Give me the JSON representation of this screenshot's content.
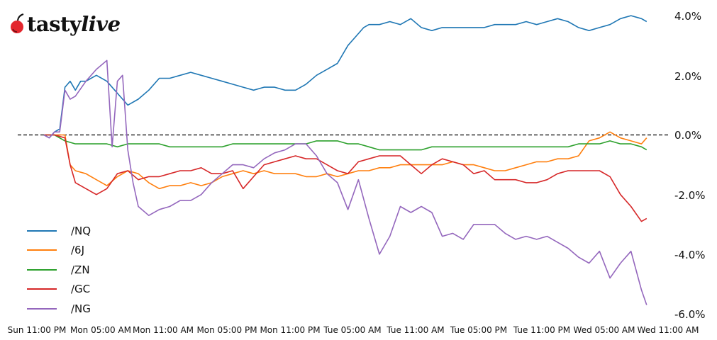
{
  "brand": {
    "name_part1": "tasty",
    "name_part2": "live",
    "cherry_color": "#e3262d"
  },
  "chart_data": {
    "type": "line",
    "title": "",
    "xlabel": "",
    "ylabel": "",
    "ylim": [
      -6.0,
      4.0
    ],
    "y_ticks": [
      "4.0%",
      "2.0%",
      "0.0%",
      "-2.0%",
      "-4.0%",
      "-6.0%"
    ],
    "y_tick_values": [
      4.0,
      2.0,
      0.0,
      -2.0,
      -4.0,
      -6.0
    ],
    "y_axis_position": "right",
    "x_ticks": [
      "Sun 11:00 PM",
      "Mon 05:00 AM",
      "Mon 11:00 AM",
      "Mon 05:00 PM",
      "Mon 11:00 PM",
      "Tue 05:00 AM",
      "Tue 11:00 AM",
      "Tue 05:00 PM",
      "Tue 11:00 PM",
      "Wed 05:00 AM",
      "Wed 11:00 AM"
    ],
    "x_hours_from_start_note": "x values are hours since Sun 11:00 PM (tick every 6h)",
    "reference_line": {
      "y": 0.0,
      "style": "dashed",
      "color": "#000000"
    },
    "grid": false,
    "legend_position": "lower left",
    "series": [
      {
        "name": "/NQ",
        "color": "#1f77b4",
        "x": [
          0,
          0.5,
          1,
          1.5,
          2,
          2.5,
          3,
          3.5,
          4,
          5,
          6,
          7,
          8,
          9,
          10,
          11,
          12,
          13,
          14,
          15,
          16,
          17,
          18,
          19,
          20,
          21,
          22,
          23,
          24,
          25,
          26,
          27,
          28,
          29,
          30,
          30.5,
          31,
          32,
          33,
          34,
          35,
          36,
          37,
          38,
          39,
          40,
          41,
          42,
          43,
          44,
          45,
          46,
          47,
          48,
          49,
          50,
          51,
          52,
          53,
          54,
          55,
          56,
          57,
          57.5
        ],
        "values": [
          0,
          -0.1,
          0.1,
          0.2,
          1.6,
          1.8,
          1.5,
          1.8,
          1.8,
          2.0,
          1.8,
          1.4,
          1.0,
          1.2,
          1.5,
          1.9,
          1.9,
          2.0,
          2.1,
          2.0,
          1.9,
          1.8,
          1.7,
          1.6,
          1.5,
          1.6,
          1.6,
          1.5,
          1.5,
          1.7,
          2.0,
          2.2,
          2.4,
          3.0,
          3.4,
          3.6,
          3.7,
          3.7,
          3.8,
          3.7,
          3.9,
          3.6,
          3.5,
          3.6,
          3.6,
          3.6,
          3.6,
          3.6,
          3.7,
          3.7,
          3.7,
          3.8,
          3.7,
          3.8,
          3.9,
          3.8,
          3.6,
          3.5,
          3.6,
          3.7,
          3.9,
          4.0,
          3.9,
          3.8
        ]
      },
      {
        "name": "/6J",
        "color": "#ff7f0e",
        "x": [
          0,
          1,
          2,
          2.5,
          3,
          4,
          5,
          6,
          7,
          8,
          9,
          10,
          11,
          12,
          13,
          14,
          15,
          16,
          17,
          18,
          19,
          20,
          21,
          22,
          23,
          24,
          25,
          26,
          27,
          28,
          29,
          30,
          31,
          32,
          33,
          34,
          35,
          36,
          37,
          38,
          39,
          40,
          41,
          42,
          43,
          44,
          45,
          46,
          47,
          48,
          49,
          50,
          51,
          52,
          53,
          54,
          55,
          56,
          57,
          57.5
        ],
        "values": [
          0,
          0,
          0,
          -1.0,
          -1.2,
          -1.3,
          -1.5,
          -1.7,
          -1.4,
          -1.2,
          -1.3,
          -1.6,
          -1.8,
          -1.7,
          -1.7,
          -1.6,
          -1.7,
          -1.6,
          -1.4,
          -1.3,
          -1.2,
          -1.3,
          -1.2,
          -1.3,
          -1.3,
          -1.3,
          -1.4,
          -1.4,
          -1.3,
          -1.4,
          -1.3,
          -1.2,
          -1.2,
          -1.1,
          -1.1,
          -1.0,
          -1.0,
          -1.0,
          -1.0,
          -1.0,
          -0.9,
          -1.0,
          -1.0,
          -1.1,
          -1.2,
          -1.2,
          -1.1,
          -1.0,
          -0.9,
          -0.9,
          -0.8,
          -0.8,
          -0.7,
          -0.2,
          -0.1,
          0.1,
          -0.1,
          -0.2,
          -0.3,
          -0.1
        ]
      },
      {
        "name": "/ZN",
        "color": "#2ca02c",
        "x": [
          0,
          1,
          2,
          3,
          4,
          5,
          6,
          7,
          8,
          9,
          10,
          11,
          12,
          13,
          14,
          15,
          16,
          17,
          18,
          19,
          20,
          21,
          22,
          23,
          24,
          25,
          26,
          27,
          28,
          29,
          30,
          31,
          32,
          33,
          34,
          35,
          36,
          37,
          38,
          39,
          40,
          41,
          42,
          43,
          44,
          45,
          46,
          47,
          48,
          49,
          50,
          51,
          52,
          53,
          54,
          55,
          56,
          57,
          57.5
        ],
        "values": [
          0,
          0,
          -0.2,
          -0.3,
          -0.3,
          -0.3,
          -0.3,
          -0.4,
          -0.3,
          -0.3,
          -0.3,
          -0.3,
          -0.4,
          -0.4,
          -0.4,
          -0.4,
          -0.4,
          -0.4,
          -0.3,
          -0.3,
          -0.3,
          -0.3,
          -0.3,
          -0.3,
          -0.3,
          -0.3,
          -0.2,
          -0.2,
          -0.2,
          -0.3,
          -0.3,
          -0.4,
          -0.5,
          -0.5,
          -0.5,
          -0.5,
          -0.5,
          -0.4,
          -0.4,
          -0.4,
          -0.4,
          -0.4,
          -0.4,
          -0.4,
          -0.4,
          -0.4,
          -0.4,
          -0.4,
          -0.4,
          -0.4,
          -0.4,
          -0.3,
          -0.3,
          -0.3,
          -0.2,
          -0.3,
          -0.3,
          -0.4,
          -0.5
        ]
      },
      {
        "name": "/GC",
        "color": "#d62728",
        "x": [
          0,
          1,
          2,
          2.5,
          3,
          4,
          5,
          6,
          7,
          8,
          9,
          10,
          11,
          12,
          13,
          14,
          15,
          16,
          17,
          18,
          19,
          20,
          21,
          22,
          23,
          24,
          25,
          26,
          27,
          28,
          29,
          30,
          31,
          32,
          33,
          34,
          35,
          36,
          37,
          38,
          39,
          40,
          41,
          42,
          43,
          44,
          45,
          46,
          47,
          48,
          49,
          50,
          51,
          52,
          53,
          54,
          55,
          56,
          57,
          57.5
        ],
        "values": [
          0,
          0,
          -0.1,
          -1.0,
          -1.6,
          -1.8,
          -2.0,
          -1.8,
          -1.3,
          -1.2,
          -1.5,
          -1.4,
          -1.4,
          -1.3,
          -1.2,
          -1.2,
          -1.1,
          -1.3,
          -1.3,
          -1.2,
          -1.8,
          -1.4,
          -1.0,
          -0.9,
          -0.8,
          -0.7,
          -0.8,
          -0.8,
          -1.0,
          -1.2,
          -1.3,
          -0.9,
          -0.8,
          -0.7,
          -0.7,
          -0.7,
          -1.0,
          -1.3,
          -1.0,
          -0.8,
          -0.9,
          -1.0,
          -1.3,
          -1.2,
          -1.5,
          -1.5,
          -1.5,
          -1.6,
          -1.6,
          -1.5,
          -1.3,
          -1.2,
          -1.2,
          -1.2,
          -1.2,
          -1.4,
          -2.0,
          -2.4,
          -2.9,
          -2.8
        ]
      },
      {
        "name": "/NG",
        "color": "#9467bd",
        "x": [
          0,
          0.5,
          1,
          1.5,
          2,
          2.5,
          3,
          4,
          5,
          6,
          6.5,
          7,
          7.5,
          8,
          8.5,
          9,
          10,
          11,
          12,
          13,
          14,
          15,
          16,
          17,
          18,
          19,
          20,
          21,
          22,
          23,
          24,
          25,
          26,
          27,
          28,
          29,
          30,
          31,
          32,
          33,
          34,
          35,
          36,
          37,
          38,
          39,
          40,
          41,
          42,
          43,
          44,
          45,
          46,
          47,
          48,
          49,
          50,
          51,
          52,
          53,
          54,
          55,
          56,
          57,
          57.5
        ],
        "values": [
          0,
          -0.1,
          0.1,
          0.1,
          1.5,
          1.2,
          1.3,
          1.8,
          2.2,
          2.5,
          -0.4,
          1.8,
          2.0,
          -0.5,
          -1.6,
          -2.4,
          -2.7,
          -2.5,
          -2.4,
          -2.2,
          -2.2,
          -2.0,
          -1.6,
          -1.3,
          -1.0,
          -1.0,
          -1.1,
          -0.8,
          -0.6,
          -0.5,
          -0.3,
          -0.3,
          -0.7,
          -1.3,
          -1.6,
          -2.5,
          -1.5,
          -2.8,
          -4.0,
          -3.4,
          -2.4,
          -2.6,
          -2.4,
          -2.6,
          -3.4,
          -3.3,
          -3.5,
          -3.0,
          -3.0,
          -3.0,
          -3.3,
          -3.5,
          -3.4,
          -3.5,
          -3.4,
          -3.6,
          -3.8,
          -4.1,
          -4.3,
          -3.9,
          -4.8,
          -4.3,
          -3.9,
          -5.2,
          -5.7
        ]
      }
    ]
  }
}
